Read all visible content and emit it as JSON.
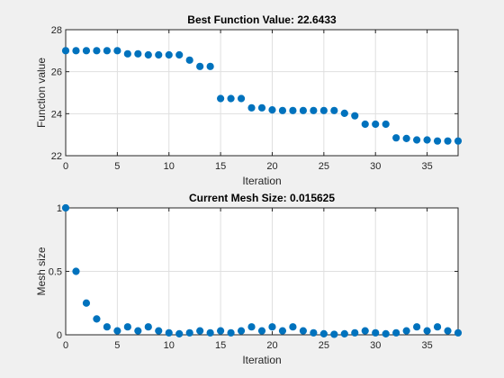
{
  "chart_data": [
    {
      "type": "scatter",
      "title": "Best Function Value: 22.6433",
      "xlabel": "Iteration",
      "ylabel": "Function value",
      "xlim": [
        0,
        38
      ],
      "ylim": [
        22,
        28
      ],
      "xticks": [
        0,
        5,
        10,
        15,
        20,
        25,
        30,
        35
      ],
      "yticks": [
        22,
        24,
        26,
        28
      ],
      "grid": true,
      "marker_color": "#0072BD",
      "x": [
        0,
        1,
        2,
        3,
        4,
        5,
        6,
        7,
        8,
        9,
        10,
        11,
        12,
        13,
        14,
        15,
        16,
        17,
        18,
        19,
        20,
        21,
        22,
        23,
        24,
        25,
        26,
        27,
        28,
        29,
        30,
        31,
        32,
        33,
        34,
        35,
        36,
        37,
        38
      ],
      "y": [
        27.0,
        27.0,
        27.0,
        27.0,
        27.0,
        27.0,
        26.85,
        26.85,
        26.8,
        26.8,
        26.8,
        26.8,
        26.55,
        26.25,
        26.25,
        24.72,
        24.72,
        24.72,
        24.28,
        24.28,
        24.18,
        24.15,
        24.15,
        24.15,
        24.15,
        24.15,
        24.15,
        24.02,
        23.9,
        23.5,
        23.5,
        23.5,
        22.85,
        22.82,
        22.75,
        22.75,
        22.7,
        22.7,
        22.7
      ]
    },
    {
      "type": "scatter",
      "title": "Current Mesh Size: 0.015625",
      "xlabel": "Iteration",
      "ylabel": "Mesh size",
      "xlim": [
        0,
        38
      ],
      "ylim": [
        0,
        1
      ],
      "xticks": [
        0,
        5,
        10,
        15,
        20,
        25,
        30,
        35
      ],
      "yticks": [
        0,
        0.5,
        1
      ],
      "grid": true,
      "marker_color": "#0072BD",
      "x": [
        0,
        1,
        2,
        3,
        4,
        5,
        6,
        7,
        8,
        9,
        10,
        11,
        12,
        13,
        14,
        15,
        16,
        17,
        18,
        19,
        20,
        21,
        22,
        23,
        24,
        25,
        26,
        27,
        28,
        29,
        30,
        31,
        32,
        33,
        34,
        35,
        36,
        37,
        38
      ],
      "y": [
        1.0,
        0.5,
        0.25,
        0.125,
        0.0625,
        0.03125,
        0.0625,
        0.03125,
        0.0625,
        0.03125,
        0.015625,
        0.0078,
        0.015625,
        0.03125,
        0.015625,
        0.03125,
        0.015625,
        0.03125,
        0.0625,
        0.03125,
        0.0625,
        0.03125,
        0.0625,
        0.03125,
        0.015625,
        0.0078,
        0.0039,
        0.0078,
        0.015625,
        0.03125,
        0.015625,
        0.0078,
        0.015625,
        0.03125,
        0.0625,
        0.03125,
        0.0625,
        0.03125,
        0.015625
      ]
    }
  ]
}
